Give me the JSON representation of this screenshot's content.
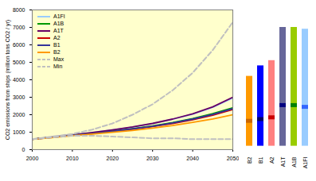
{
  "chart_data": [
    {
      "type": "line",
      "y_label": "CO2 emissions from ships (million tons CO2 / yr)",
      "x": [
        2000,
        2005,
        2010,
        2015,
        2020,
        2025,
        2030,
        2035,
        2040,
        2045,
        2050
      ],
      "series": [
        {
          "name": "A1FI",
          "color": "#99ccff",
          "line_style": "solid",
          "values": [
            600,
            720,
            850,
            975,
            1125,
            1290,
            1490,
            1740,
            2030,
            2420,
            2950
          ]
        },
        {
          "name": "A1B",
          "color": "#009900",
          "line_style": "solid",
          "values": [
            600,
            710,
            830,
            940,
            1060,
            1200,
            1360,
            1550,
            1780,
            2060,
            2400
          ]
        },
        {
          "name": "A1T",
          "color": "#660066",
          "line_style": "solid",
          "values": [
            600,
            720,
            850,
            980,
            1130,
            1300,
            1500,
            1750,
            2050,
            2450,
            3000
          ]
        },
        {
          "name": "A2",
          "color": "#cc0000",
          "line_style": "solid",
          "values": [
            600,
            700,
            820,
            920,
            1040,
            1170,
            1320,
            1500,
            1710,
            1970,
            2300
          ]
        },
        {
          "name": "B1",
          "color": "#333399",
          "line_style": "solid",
          "values": [
            600,
            710,
            830,
            930,
            1050,
            1190,
            1340,
            1530,
            1750,
            2020,
            2350
          ]
        },
        {
          "name": "B2",
          "color": "#ff9900",
          "line_style": "solid",
          "values": [
            600,
            690,
            800,
            890,
            990,
            1100,
            1230,
            1380,
            1560,
            1760,
            2000
          ]
        },
        {
          "name": "Max",
          "color": "#c0c0c0",
          "line_style": "dashed",
          "values": [
            600,
            750,
            900,
            1150,
            1500,
            2000,
            2600,
            3400,
            4400,
            5700,
            7300
          ]
        },
        {
          "name": "Min",
          "color": "#c0c0c0",
          "line_style": "dashed",
          "values": [
            600,
            700,
            800,
            800,
            750,
            700,
            650,
            650,
            600,
            600,
            600
          ]
        }
      ],
      "xlim": [
        2000,
        2050
      ],
      "xticks": [
        2000,
        2010,
        2020,
        2030,
        2040,
        2050
      ],
      "ylim": [
        0,
        8000
      ],
      "yticks": [
        0,
        1000,
        2000,
        3000,
        4000,
        5000,
        6000,
        7000,
        8000
      ],
      "grid": false,
      "legend": "top-left"
    },
    {
      "type": "range_bar",
      "categories": [
        "B2",
        "B1",
        "A2",
        "A1T",
        "A1B",
        "A1FI"
      ],
      "ranges": [
        [
          200,
          4200
        ],
        [
          200,
          4800
        ],
        [
          200,
          5100
        ],
        [
          200,
          7000
        ],
        [
          200,
          7000
        ],
        [
          200,
          6900
        ]
      ],
      "central": [
        1650,
        1750,
        1850,
        2550,
        2550,
        2450
      ],
      "colors": [
        "#ff9900",
        "#0000ff",
        "#ff8080",
        "#666699",
        "#99cc00",
        "#99ccff"
      ],
      "central_colors": [
        "#cc6600",
        "#000066",
        "#cc0000",
        "#000080",
        "#008000",
        "#3366ff"
      ],
      "ylim": [
        0,
        8000
      ],
      "tick_labels": "x"
    }
  ]
}
